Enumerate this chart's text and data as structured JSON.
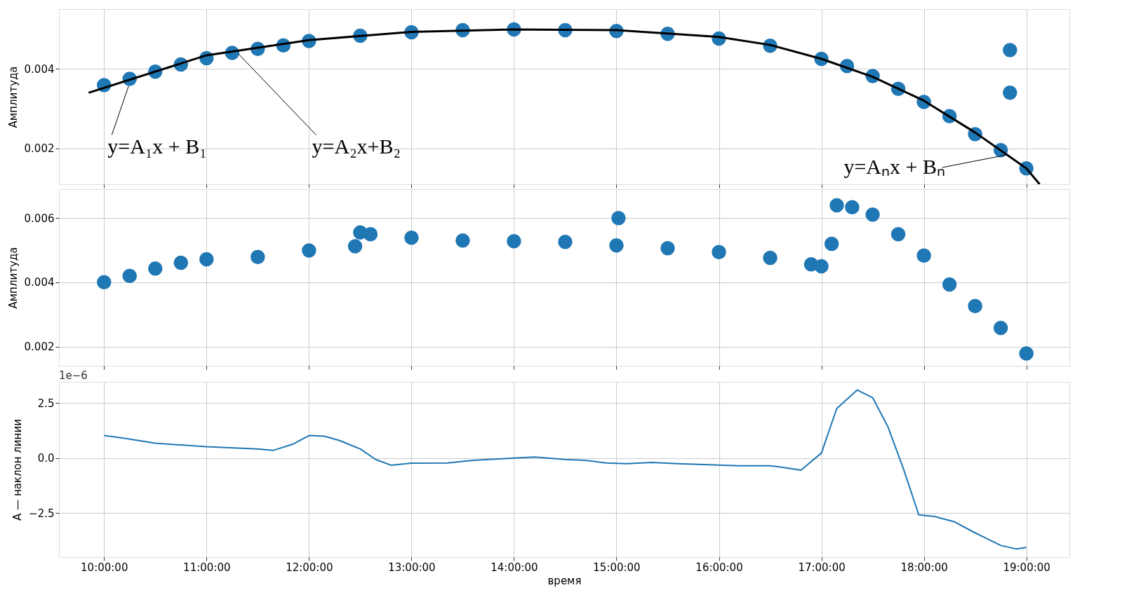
{
  "chart_data": [
    {
      "type": "scatter",
      "ylabel": "Амплитуда",
      "xlim": [
        9.56,
        19.42
      ],
      "ylim": [
        0.0011,
        0.0055
      ],
      "yticks": [
        0.002,
        0.004
      ],
      "xticks": [
        {
          "value": 10,
          "label": null
        },
        {
          "value": 11,
          "label": null
        },
        {
          "value": 12,
          "label": null
        },
        {
          "value": 13,
          "label": null
        },
        {
          "value": 14,
          "label": null
        },
        {
          "value": 15,
          "label": null
        },
        {
          "value": 16,
          "label": null
        },
        {
          "value": 17,
          "label": null
        },
        {
          "value": 18,
          "label": null
        },
        {
          "value": 19,
          "label": null
        }
      ],
      "tick_labels": "y",
      "grid": true,
      "series": [
        {
          "marker": "circle",
          "color": "#1f77b4",
          "x": [
            10.0,
            10.25,
            10.5,
            10.75,
            11.0,
            11.25,
            11.5,
            11.75,
            12.0,
            12.5,
            13.0,
            13.5,
            14.0,
            14.5,
            15.0,
            15.5,
            16.0,
            16.5,
            17.0,
            17.25,
            17.5,
            17.75,
            18.0,
            18.25,
            18.5,
            18.75,
            19.0,
            18.84,
            18.84
          ],
          "values": [
            0.00359,
            0.00375,
            0.00393,
            0.00411,
            0.00427,
            0.0044,
            0.0045,
            0.00459,
            0.0047,
            0.00483,
            0.00492,
            0.00497,
            0.00499,
            0.00497,
            0.00495,
            0.00488,
            0.00476,
            0.00458,
            0.00425,
            0.00407,
            0.00382,
            0.0035,
            0.00317,
            0.00281,
            0.00236,
            0.00196,
            0.0015,
            0.00447,
            0.0034
          ]
        },
        {
          "type": "line",
          "marker": "none",
          "line_style": "solid",
          "color": "#000000",
          "x": [
            9.85,
            11.0,
            12.0,
            13.0,
            14.0,
            15.0,
            16.0,
            16.5,
            17.0,
            17.5,
            18.0,
            18.5,
            19.0,
            19.13
          ],
          "values": [
            0.0034,
            0.00434,
            0.00472,
            0.00493,
            0.00499,
            0.00497,
            0.0048,
            0.0046,
            0.00425,
            0.0038,
            0.0032,
            0.0024,
            0.0015,
            0.0011
          ]
        }
      ],
      "annotations": [
        {
          "text": "y=A₁x + B₁",
          "x": 10.24,
          "y": 0.00357
        },
        {
          "text": "y=A₂x+B₂",
          "x": 11.31,
          "y": 0.00438
        },
        {
          "text": "y=Aₙx + Bₙ",
          "x": 18.81,
          "y": 0.00184
        }
      ]
    },
    {
      "type": "scatter",
      "ylabel": "Амплитуда",
      "xlim": [
        9.56,
        19.42
      ],
      "ylim": [
        0.0014,
        0.0069
      ],
      "yticks": [
        0.002,
        0.004,
        0.006
      ],
      "xticks": [
        {
          "value": 10,
          "label": null
        },
        {
          "value": 11,
          "label": null
        },
        {
          "value": 12,
          "label": null
        },
        {
          "value": 13,
          "label": null
        },
        {
          "value": 14,
          "label": null
        },
        {
          "value": 15,
          "label": null
        },
        {
          "value": 16,
          "label": null
        },
        {
          "value": 17,
          "label": null
        },
        {
          "value": 18,
          "label": null
        },
        {
          "value": 19,
          "label": null
        }
      ],
      "tick_labels": "y",
      "grid": true,
      "marker": "circle",
      "series": [
        {
          "color": "#1f77b4",
          "x": [
            10.0,
            10.25,
            10.5,
            10.75,
            11.0,
            11.5,
            12.0,
            12.45,
            12.5,
            12.6,
            13.0,
            13.5,
            14.0,
            14.5,
            15.0,
            15.5,
            16.0,
            16.5,
            16.9,
            17.0,
            17.1,
            17.15,
            17.3,
            17.5,
            17.75,
            18.0,
            18.25,
            18.5,
            18.75,
            19.0,
            15.02
          ],
          "values": [
            0.004,
            0.0042,
            0.00443,
            0.00461,
            0.00472,
            0.00479,
            0.00499,
            0.00512,
            0.00555,
            0.0055,
            0.00539,
            0.0053,
            0.00528,
            0.00526,
            0.00515,
            0.00506,
            0.00494,
            0.00476,
            0.00456,
            0.0045,
            0.0052,
            0.0064,
            0.00634,
            0.00611,
            0.0055,
            0.00483,
            0.00393,
            0.00326,
            0.00258,
            0.00178,
            0.006
          ]
        }
      ]
    },
    {
      "type": "line",
      "ylabel": "A — наклон линии",
      "xlabel": "время",
      "xlim": [
        9.56,
        19.42
      ],
      "ylim": [
        -4.5,
        3.47
      ],
      "yticks": [
        {
          "value": -2.5,
          "label": "−2.5"
        },
        {
          "value": 0,
          "label": "0.0"
        },
        2.5
      ],
      "xticks": [
        {
          "value": 10,
          "label": "10:00:00"
        },
        {
          "value": 11,
          "label": "11:00:00"
        },
        {
          "value": 12,
          "label": "12:00:00"
        },
        {
          "value": 13,
          "label": "13:00:00"
        },
        {
          "value": 14,
          "label": "14:00:00"
        },
        {
          "value": 15,
          "label": "15:00:00"
        },
        {
          "value": 16,
          "label": "16:00:00"
        },
        {
          "value": 17,
          "label": "17:00:00"
        },
        {
          "value": 18,
          "label": "18:00:00"
        },
        {
          "value": 19,
          "label": "19:00:00"
        }
      ],
      "grid": true,
      "line_style": "solid",
      "annotations": [
        "1e−6"
      ],
      "series": [
        {
          "color": "#1f77b4",
          "x": [
            10.0,
            10.2,
            10.5,
            11.0,
            11.5,
            11.65,
            11.85,
            12.0,
            12.15,
            12.3,
            12.5,
            12.65,
            12.8,
            13.0,
            13.35,
            13.6,
            14.0,
            14.2,
            14.5,
            14.7,
            14.9,
            15.1,
            15.35,
            15.6,
            15.8,
            16.2,
            16.5,
            16.6,
            16.8,
            17.0,
            17.15,
            17.35,
            17.5,
            17.65,
            17.8,
            17.95,
            18.1,
            18.3,
            18.5,
            18.75,
            18.9,
            19.0
          ],
          "values": [
            1.03,
            0.9,
            0.68,
            0.52,
            0.42,
            0.35,
            0.65,
            1.03,
            1.0,
            0.8,
            0.42,
            -0.06,
            -0.32,
            -0.23,
            -0.22,
            -0.1,
            0.0,
            0.05,
            -0.06,
            -0.1,
            -0.22,
            -0.25,
            -0.2,
            -0.25,
            -0.28,
            -0.35,
            -0.35,
            -0.4,
            -0.55,
            0.23,
            2.26,
            3.1,
            2.75,
            1.42,
            -0.48,
            -2.58,
            -2.65,
            -2.9,
            -3.4,
            -3.97,
            -4.13,
            -4.06
          ]
        }
      ]
    }
  ]
}
